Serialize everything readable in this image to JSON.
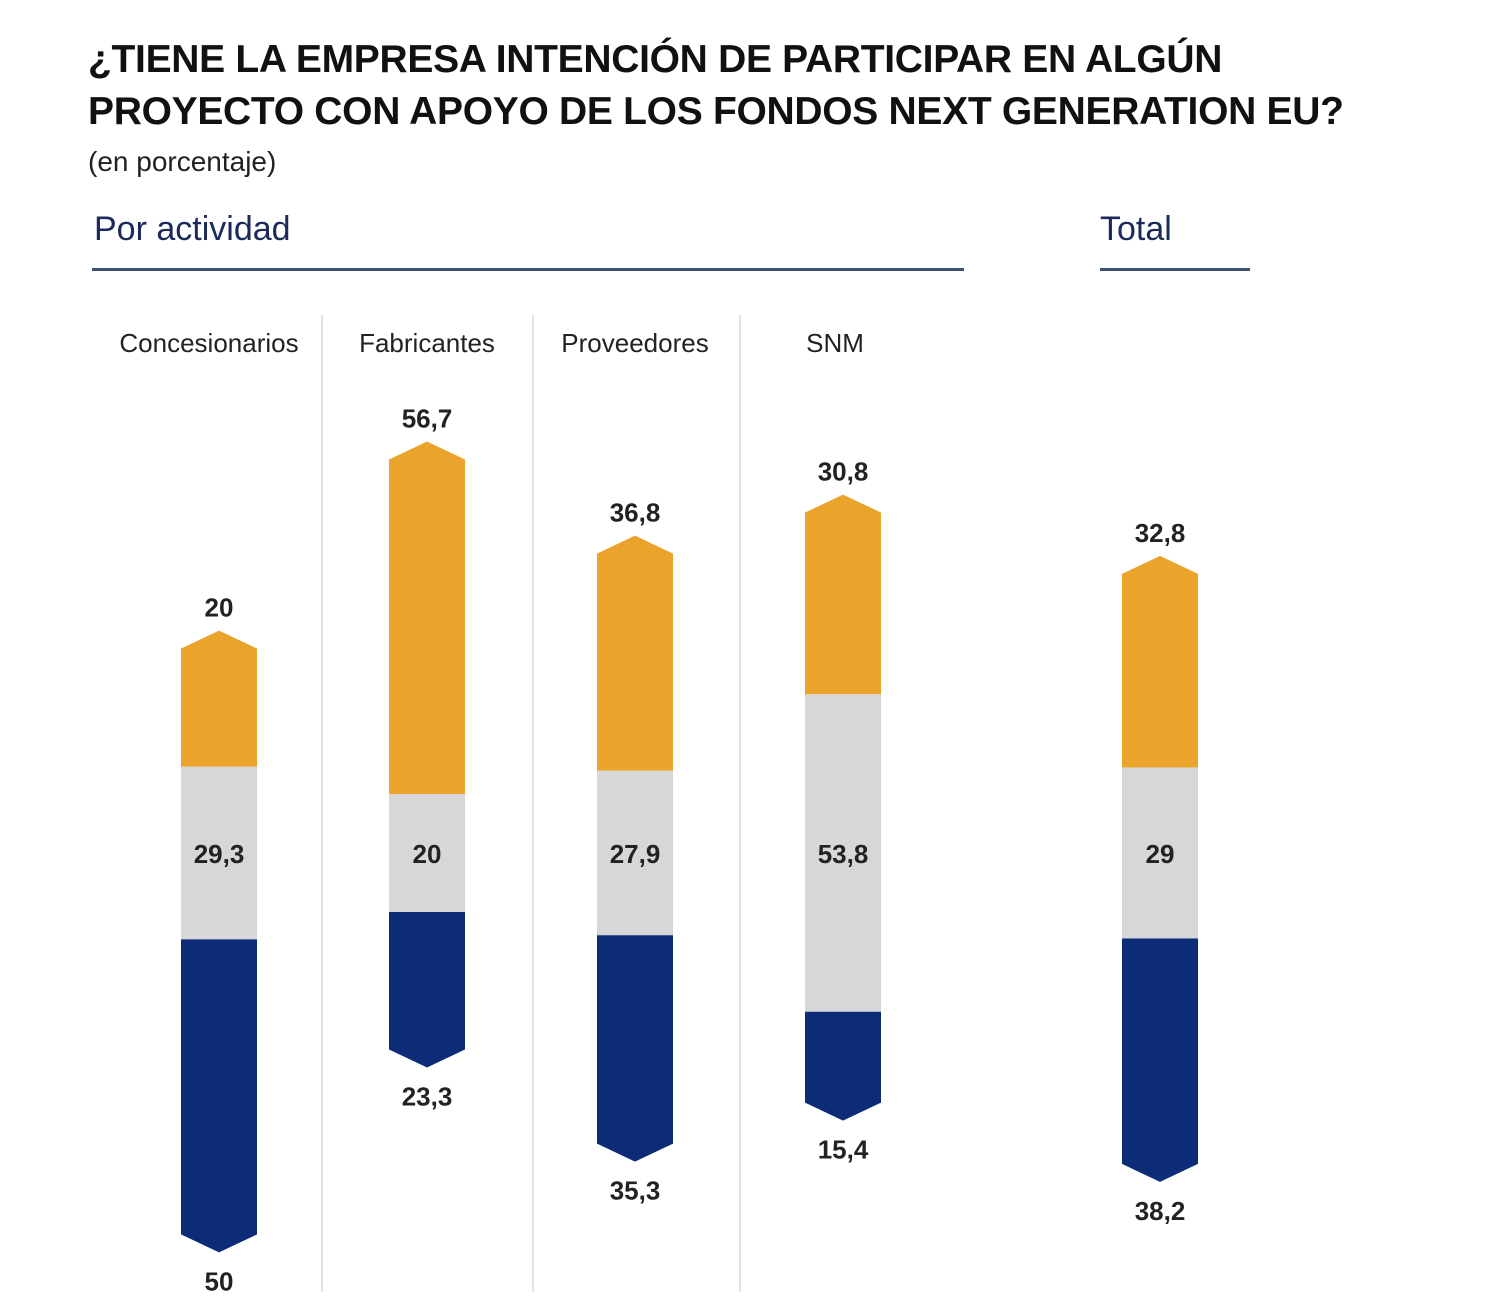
{
  "chart_data": {
    "type": "bar",
    "stacked": true,
    "title": "¿TIENE LA EMPRESA INTENCIÓN DE PARTICIPAR EN ALGÚN PROYECTO CON APOYO DE LOS FONDOS NEXT GENERATION EU?",
    "subtitle": "(en porcentaje)",
    "sections": {
      "by_activity": "Por actividad",
      "total": "Total"
    },
    "categories": [
      "Concesionarios",
      "Fabricantes",
      "Proveedores",
      "SNM",
      ""
    ],
    "series": [
      {
        "values": [
          20,
          56.7,
          36.8,
          30.8,
          32.8
        ],
        "labels": [
          "20",
          "56,7",
          "36,8",
          "30,8",
          "32,8"
        ],
        "color": "#EBA42B"
      },
      {
        "values": [
          29.3,
          20,
          27.9,
          53.8,
          29
        ],
        "labels": [
          "29,3",
          "20",
          "27,9",
          "53,8",
          "29"
        ],
        "color": "#D7D7DA"
      },
      {
        "values": [
          50,
          23.3,
          35.3,
          15.4,
          38.2
        ],
        "labels": [
          "50",
          "23,3",
          "35,3",
          "15,4",
          "38,2"
        ],
        "color": "#0C2C78"
      }
    ],
    "legend": "none",
    "grid": false
  }
}
